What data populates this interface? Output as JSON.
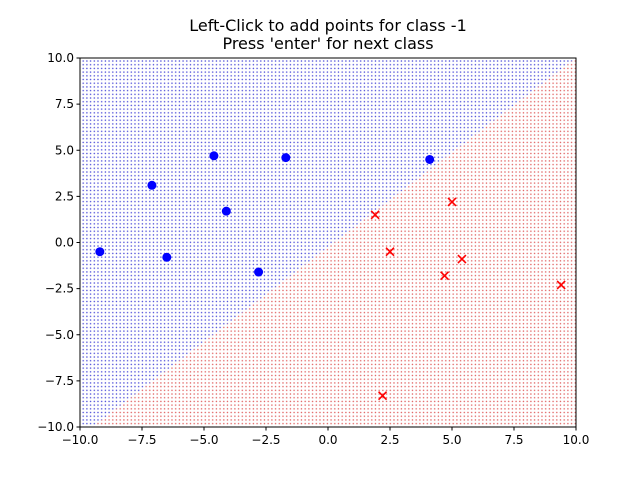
{
  "window": {
    "title_lines": [
      "Left-Click to add points for class -1",
      "Press 'enter' for next class"
    ]
  },
  "chart_data": {
    "type": "scatter",
    "title": "Left-Click to add points for class -1\nPress 'enter' for next class",
    "xlabel": "",
    "ylabel": "",
    "xlim": [
      -10,
      10
    ],
    "ylim": [
      -10,
      10
    ],
    "xticks": [
      -10.0,
      -7.5,
      -5.0,
      -2.5,
      0.0,
      2.5,
      5.0,
      7.5,
      10.0
    ],
    "yticks": [
      -10.0,
      -7.5,
      -5.0,
      -2.5,
      0.0,
      2.5,
      5.0,
      7.5,
      10.0
    ],
    "xtick_labels": [
      "−10.0",
      "−7.5",
      "−5.0",
      "−2.5",
      "0.0",
      "2.5",
      "5.0",
      "7.5",
      "10.0"
    ],
    "ytick_labels": [
      "−10.0",
      "−7.5",
      "−5.0",
      "−2.5",
      "0.0",
      "2.5",
      "5.0",
      "7.5",
      "10.0"
    ],
    "grid": false,
    "decision_boundary": {
      "description": "linear boundary between blue (upper-left) and red (lower-right) regions",
      "points": [
        [
          -9.5,
          -10.0
        ],
        [
          10.0,
          10.0
        ]
      ],
      "region_colors": {
        "upper_left": "#4a4ad8",
        "lower_right": "#e06060"
      }
    },
    "series": [
      {
        "marker": "circle",
        "color": "#0000ff",
        "x": [
          -9.2,
          -7.1,
          -6.5,
          -4.6,
          -4.1,
          -2.8,
          -1.7,
          4.1
        ],
        "y": [
          -0.5,
          3.1,
          -0.8,
          4.7,
          1.7,
          -1.6,
          4.6,
          4.5
        ]
      },
      {
        "marker": "x",
        "color": "#ff0000",
        "x": [
          1.9,
          2.5,
          5.0,
          4.7,
          5.4,
          9.4,
          2.2
        ],
        "y": [
          1.5,
          -0.5,
          2.2,
          -1.8,
          -0.9,
          -2.3,
          -8.3
        ]
      }
    ]
  }
}
